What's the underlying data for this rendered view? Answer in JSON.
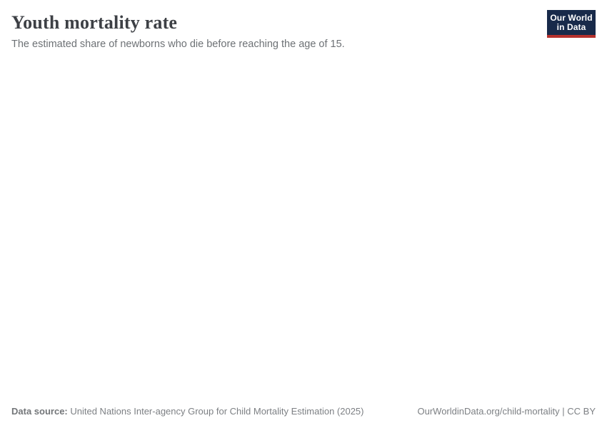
{
  "header": {
    "title": "Youth mortality rate",
    "subtitle": "The estimated share of newborns who die before reaching the age of 15.",
    "logo": {
      "line1": "Our World",
      "line2": "in Data",
      "bg_color": "#182a4a",
      "accent_color": "#b5312d"
    }
  },
  "footer": {
    "source_label": "Data source:",
    "source_text": " United Nations Inter-agency Group for Child Mortality Estimation (2025)",
    "attribution": "OurWorldinData.org/child-mortality | CC BY"
  },
  "chart_data": {
    "type": "line",
    "title": "Youth mortality rate",
    "subtitle": "The estimated share of newborns who die before reaching the age of 15.",
    "series": [],
    "categories": [],
    "plot_area_state": "empty"
  }
}
